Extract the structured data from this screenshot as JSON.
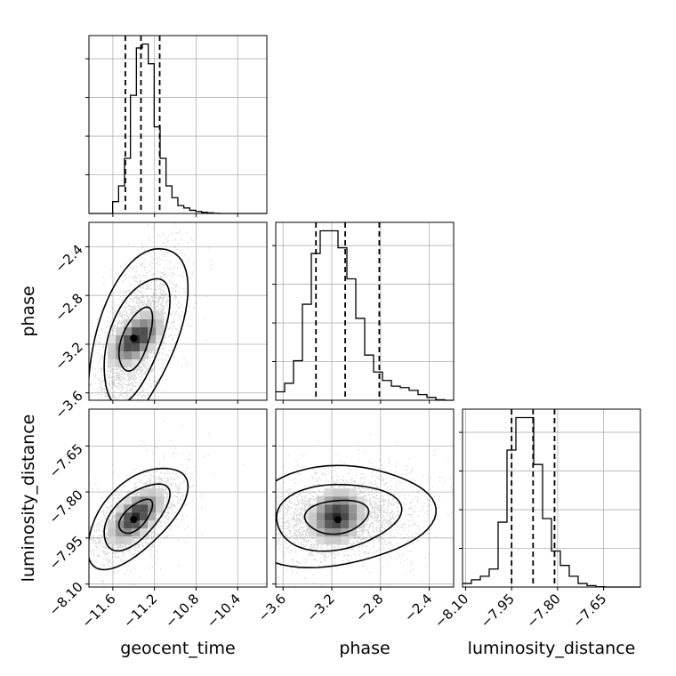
{
  "chart_data": {
    "type": "corner",
    "parameters": [
      "geocent_time",
      "phase",
      "luminosity_distance"
    ],
    "axis_labels": {
      "geocent_time": "geocent_time",
      "phase": "phase",
      "luminosity_distance": "luminosity_distance"
    },
    "ranges": {
      "geocent_time": [
        -11.83,
        -10.12
      ],
      "phase": [
        -3.66,
        -2.2
      ],
      "luminosity_distance": [
        -8.11,
        -7.53
      ]
    },
    "ticks": {
      "geocent_time": {
        "values": [
          -11.6,
          -11.2,
          -10.8,
          -10.4
        ],
        "labels": [
          "−11.6",
          "−11.2",
          "−10.8",
          "−10.4"
        ]
      },
      "phase": {
        "values": [
          -3.6,
          -3.2,
          -2.8,
          -2.4
        ],
        "labels": [
          "−3.6",
          "−3.2",
          "−2.8",
          "−2.4"
        ]
      },
      "luminosity_distance": {
        "values": [
          -8.1,
          -7.95,
          -7.8,
          -7.65
        ],
        "labels": [
          "−8.10",
          "−7.95",
          "−7.80",
          "−7.65"
        ]
      }
    },
    "quantiles": {
      "geocent_time": [
        -11.48,
        -11.33,
        -11.15
      ],
      "phase": [
        -3.33,
        -3.09,
        -2.81
      ],
      "luminosity_distance": [
        -7.95,
        -7.88,
        -7.81
      ]
    },
    "histograms": {
      "geocent_time": [
        0,
        0,
        0,
        0,
        3,
        7,
        14,
        30,
        42,
        43,
        38,
        22,
        14,
        7,
        4,
        2,
        1.4,
        0.8,
        0.5,
        0.3,
        0.15,
        0.05,
        0,
        0,
        0,
        0,
        0,
        0,
        0,
        0
      ],
      "phase": [
        3,
        6,
        14,
        34,
        52,
        60,
        60,
        54,
        43,
        29,
        16,
        10,
        7,
        5,
        4.5,
        3.5,
        2,
        1,
        0.2,
        0
      ],
      "luminosity_distance": [
        1,
        2,
        3,
        5,
        18,
        38,
        47,
        47,
        34,
        19,
        10,
        6,
        3,
        1,
        0.4,
        0.1,
        0,
        0,
        0,
        0
      ]
    },
    "grid": true,
    "contour_levels": [
      0.39,
      0.86,
      0.99
    ],
    "correlations": {
      "phase|geocent_time": 0.55,
      "luminosity_distance|geocent_time": 0.6,
      "luminosity_distance|phase": 0.15
    },
    "centers": {
      "geocent_time": -11.38,
      "phase": -3.16,
      "luminosity_distance": -7.88
    },
    "spread": {
      "geocent_time": 0.16,
      "phase": 0.26,
      "luminosity_distance": 0.055
    },
    "mode": {
      "geocent_time": -11.4,
      "phase": -3.15,
      "luminosity_distance": -7.89
    }
  }
}
